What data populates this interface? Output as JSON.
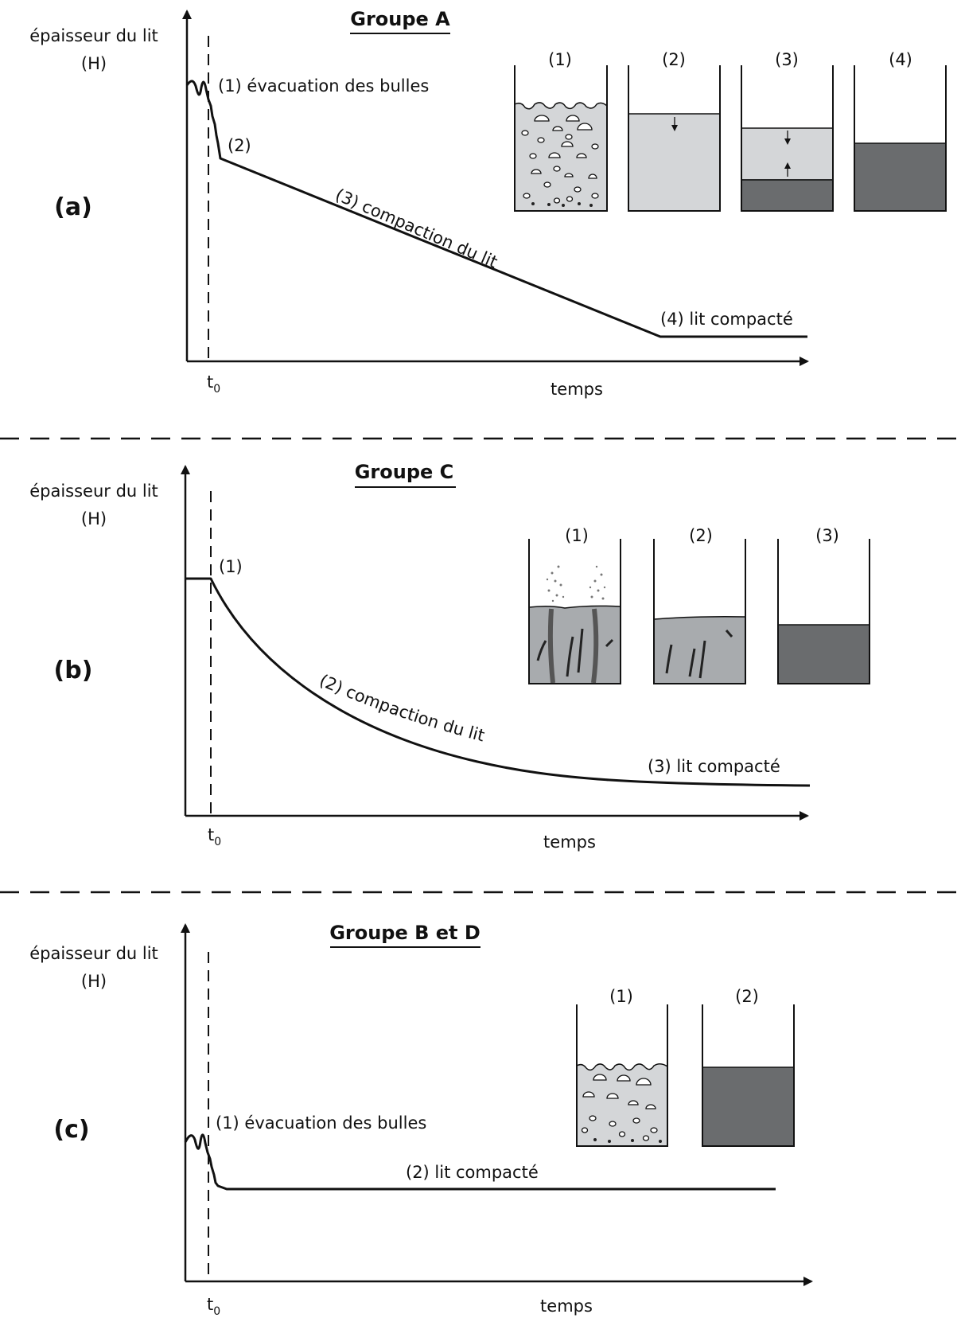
{
  "separators": [
    "dashed-line",
    "dashed-line"
  ],
  "panels": [
    {
      "panel_label": "(a)",
      "title": "Groupe A",
      "y_axis_label": [
        "épaisseur du lit",
        "(H)"
      ],
      "x_axis_label": "temps",
      "t0_label": [
        "t",
        "0"
      ],
      "curve_labels": [
        "(1) évacuation des bulles",
        "(2)",
        "(3) compaction du lit",
        "(4) lit compacté"
      ],
      "beaker_labels": [
        "(1)",
        "(2)",
        "(3)",
        "(4)"
      ]
    },
    {
      "panel_label": "(b)",
      "title": "Groupe C",
      "y_axis_label": [
        "épaisseur du lit",
        "(H)"
      ],
      "x_axis_label": "temps",
      "t0_label": [
        "t",
        "0"
      ],
      "curve_labels": [
        "(1)",
        "(2) compaction du lit",
        "(3)  lit compacté"
      ],
      "beaker_labels": [
        "(1)",
        "(2)",
        "(3)"
      ]
    },
    {
      "panel_label": "(c)",
      "title": "Groupe B et D",
      "y_axis_label": [
        "épaisseur du lit",
        "(H)"
      ],
      "x_axis_label": "temps",
      "t0_label": [
        "t",
        "0"
      ],
      "curve_labels": [
        "(1) évacuation des bulles",
        "(2) lit compacté"
      ],
      "beaker_labels": [
        "(1)",
        "(2)"
      ]
    }
  ],
  "colors": {
    "light_fill": "#d4d6d8",
    "mid_fill": "#a8abae",
    "dark_fill": "#6a6c6e",
    "ink": "#111111"
  }
}
